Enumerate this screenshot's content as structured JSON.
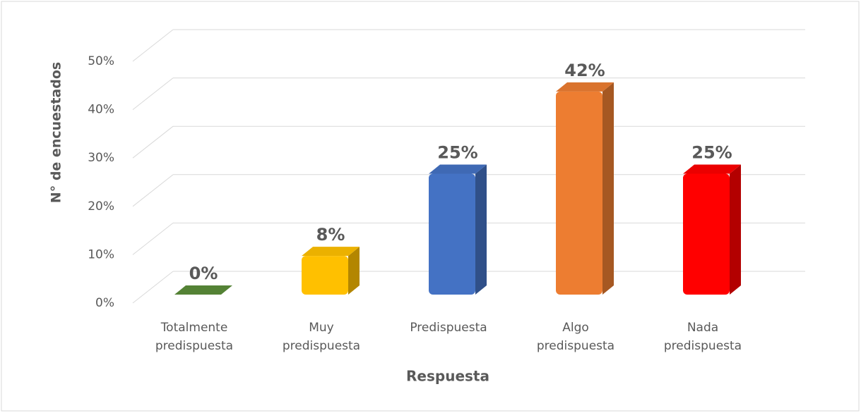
{
  "chart_data": {
    "type": "bar3d",
    "categories": [
      "Totalmente predispuesta",
      "Muy predispuesta",
      "Predispuesta",
      "Algo predispuesta",
      "Nada predispuesta"
    ],
    "values": [
      0,
      8,
      25,
      42,
      25
    ],
    "value_labels": [
      "0%",
      "8%",
      "25%",
      "42%",
      "25%"
    ],
    "colors": [
      "#548235",
      "#ffc000",
      "#4472c4",
      "#ed7d31",
      "#ff0000"
    ],
    "ylim": [
      0,
      50
    ],
    "yticks": [
      {
        "value": 0,
        "label": "0%"
      },
      {
        "value": 10,
        "label": "10%"
      },
      {
        "value": 20,
        "label": "20%"
      },
      {
        "value": 30,
        "label": "30%"
      },
      {
        "value": 40,
        "label": "40%"
      },
      {
        "value": 50,
        "label": "50%"
      }
    ],
    "y_label": "N° de encuestados",
    "x_label": "Respuesta",
    "grid": true
  }
}
